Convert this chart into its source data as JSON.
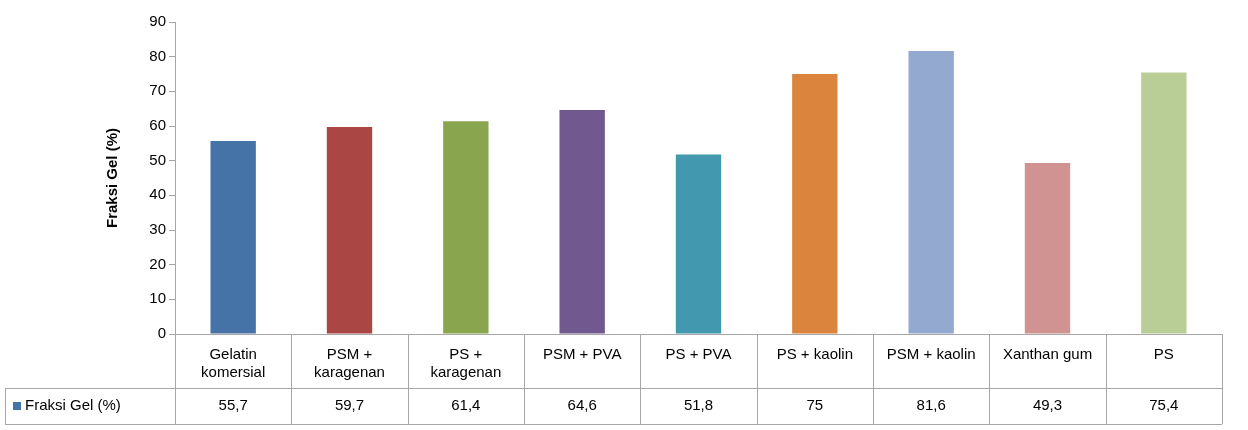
{
  "chart_data": {
    "type": "bar",
    "ylabel": "Fraksi Gel (%)",
    "categories": [
      "Gelatin komersial",
      "PSM + karagenan",
      "PS + karagenan",
      "PSM + PVA",
      "PS + PVA",
      "PS + kaolin",
      "PSM + kaolin",
      "Xanthan gum",
      "PS"
    ],
    "series": [
      {
        "name": "Fraksi Gel (%)",
        "color": "#4572a7",
        "colors": [
          "#4572a7",
          "#aa4643",
          "#89a54e",
          "#71588f",
          "#4198af",
          "#db843d",
          "#93a9cf",
          "#d19392",
          "#b9cd96"
        ],
        "values": [
          55.7,
          59.7,
          61.4,
          64.6,
          51.8,
          75,
          81.6,
          49.3,
          75.4
        ],
        "value_labels": [
          "55,7",
          "59,7",
          "61,4",
          "64,6",
          "51,8",
          "75",
          "81,6",
          "49,3",
          "75,4"
        ]
      }
    ],
    "ylim": [
      0,
      90
    ],
    "yticks": [
      0,
      10,
      20,
      30,
      40,
      50,
      60,
      70,
      80,
      90
    ],
    "grid": false,
    "legend": "bottom",
    "data_labels": true
  }
}
